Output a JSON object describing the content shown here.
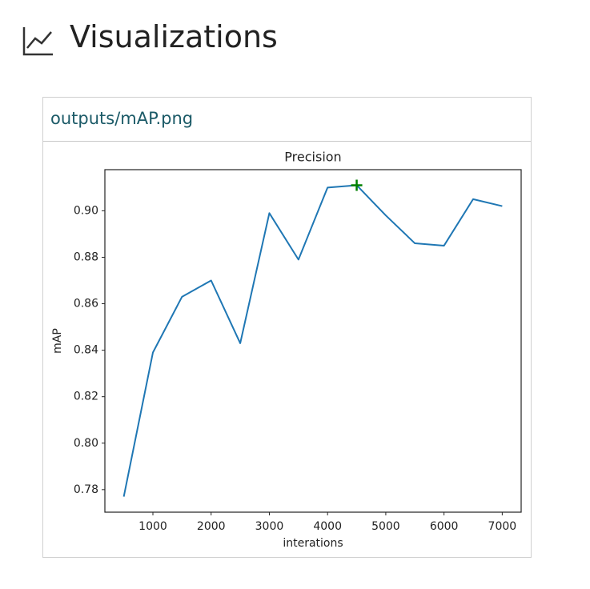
{
  "header": {
    "title": "Visualizations"
  },
  "card": {
    "filename": "outputs/mAP.png"
  },
  "chart_data": {
    "type": "line",
    "title": "Precision",
    "x_label": "interations",
    "y_label": "mAP",
    "x": [
      500,
      1000,
      1500,
      2000,
      2500,
      3000,
      3500,
      4000,
      4500,
      5000,
      5500,
      6000,
      6500,
      7000
    ],
    "values": [
      0.777,
      0.839,
      0.863,
      0.87,
      0.843,
      0.899,
      0.879,
      0.91,
      0.911,
      0.898,
      0.886,
      0.885,
      0.905,
      0.902
    ],
    "color": "#1f77b4",
    "best": {
      "x": 4500,
      "y": 0.911,
      "color": "green"
    },
    "xlim": [
      175,
      7325
    ],
    "xticks": [
      1000,
      2000,
      3000,
      4000,
      5000,
      6000,
      7000
    ],
    "ylim": [
      0.7703,
      0.9177
    ],
    "yticks": [
      0.78,
      {
        "value": 0.8,
        "label": "0.80"
      },
      0.82,
      0.84,
      0.86,
      0.88,
      {
        "value": 0.9,
        "label": "0.90"
      }
    ],
    "grid": false
  }
}
